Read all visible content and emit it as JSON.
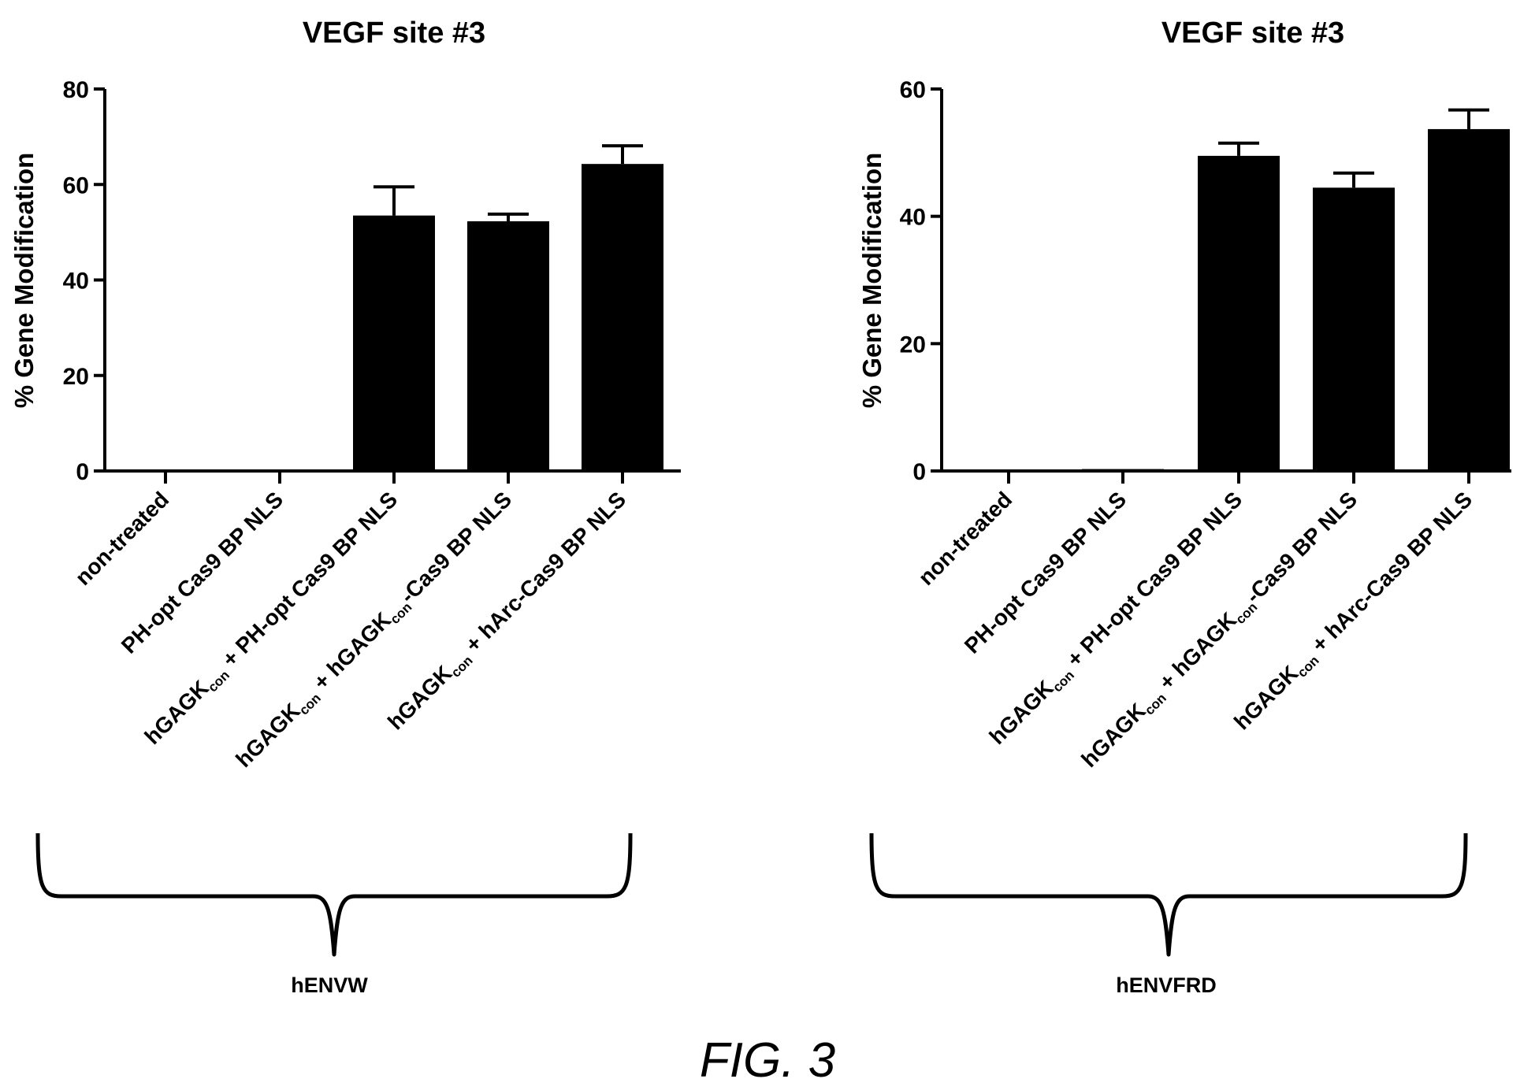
{
  "figure_label": "FIG. 3",
  "chart_data": [
    {
      "type": "bar",
      "title": "VEGF site #3",
      "ylabel": "% Gene Modification",
      "xlabel": "",
      "ylim": [
        0,
        80
      ],
      "yticks": [
        0,
        20,
        40,
        60,
        80
      ],
      "categories": [
        {
          "text": "non-treated"
        },
        {
          "text": "PH-opt Cas9 BP NLS"
        },
        {
          "pre": "hGAGK",
          "sub": "con",
          "post": " + PH-opt Cas9 BP NLS"
        },
        {
          "pre": "hGAGK",
          "sub": "con",
          "mid": " + hGAGK",
          "sub2": "con",
          "post": "-Cas9 BP NLS"
        },
        {
          "pre": "hGAGK",
          "sub": "con",
          "post": " + hArc-Cas9 BP NLS"
        }
      ],
      "values": [
        0.1,
        0.3,
        53.5,
        52.3,
        64.3
      ],
      "errors": [
        0,
        0,
        6.0,
        1.5,
        3.8
      ],
      "group_label": "hENVW",
      "bar_color": "#000000"
    },
    {
      "type": "bar",
      "title": "VEGF site #3",
      "ylabel": "% Gene Modification",
      "xlabel": "",
      "ylim": [
        0,
        60
      ],
      "yticks": [
        0,
        20,
        40,
        60
      ],
      "categories": [
        {
          "text": "non-treated"
        },
        {
          "text": "PH-opt Cas9 BP NLS"
        },
        {
          "pre": "hGAGK",
          "sub": "con",
          "post": " + PH-opt Cas9 BP NLS"
        },
        {
          "pre": "hGAGK",
          "sub": "con",
          "mid": " + hGAGK",
          "sub2": "con",
          "post": "-Cas9 BP NLS"
        },
        {
          "pre": "hGAGK",
          "sub": "con",
          "post": " + hArc-Cas9 BP NLS"
        }
      ],
      "values": [
        0.1,
        0.3,
        49.5,
        44.5,
        53.7
      ],
      "errors": [
        0,
        0,
        2.0,
        2.3,
        3.0
      ],
      "group_label": "hENVFRD",
      "bar_color": "#000000"
    }
  ]
}
